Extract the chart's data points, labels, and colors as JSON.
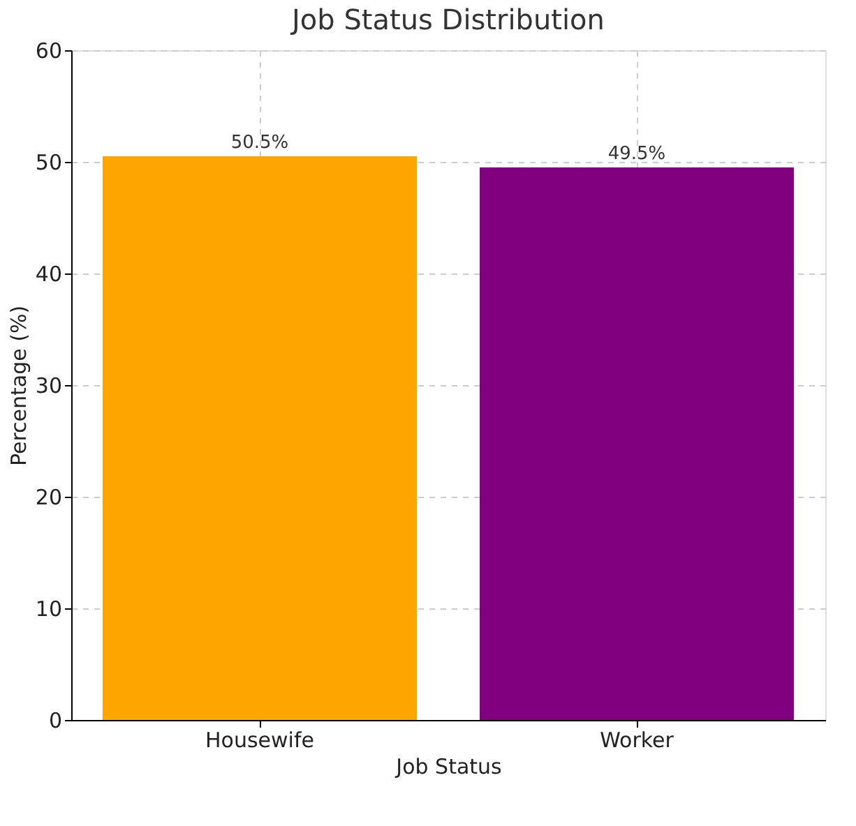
{
  "chart_data": {
    "type": "bar",
    "title": "Job Status Distribution",
    "xlabel": "Job Status",
    "ylabel": "Percentage (%)",
    "categories": [
      "Housewife",
      "Worker"
    ],
    "values": [
      50.5,
      49.5
    ],
    "colors": [
      "#ffa500",
      "#800080"
    ],
    "value_labels": [
      "50.5%",
      "49.5%"
    ],
    "ylim": [
      0,
      60
    ],
    "yticks": [
      0,
      10,
      20,
      30,
      40,
      50,
      60
    ],
    "grid": true
  }
}
